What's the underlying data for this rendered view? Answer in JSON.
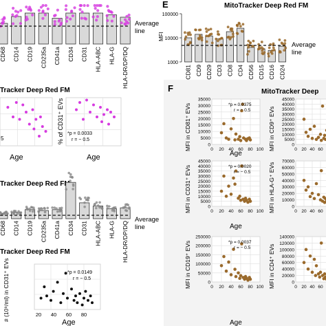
{
  "panel_letters": {
    "e": "E",
    "f": "F"
  },
  "left": {
    "title_top": "Tracker Deep Red FM",
    "title_scatter": "Tracker Deep Red FM",
    "title_mid": "Tracker Deep Red FM",
    "title_bottom": "Tracker Deep Red FM",
    "average_label_1": "Average",
    "average_label_2": "line",
    "top_bar_categories": [
      "CD68",
      "CD14",
      "CD19",
      "CD235a",
      "CD41a",
      "CD34",
      "CD31",
      "HLA-ABC",
      "HLA-G",
      "HLA-DR/DP/DQ"
    ],
    "mid_bar_categories": [
      "CD68",
      "CD14",
      "CD19",
      "CD235a",
      "CD41a",
      "CD34",
      "CD31",
      "HLA-ABC",
      "HLA-G",
      "HLA-DR/DP/DQ"
    ],
    "scatter_left": {
      "tick_label": "5"
    },
    "scatter_right": {
      "ylabel": "% of CD31⁺ EVs",
      "stat_p": "*p = 0.0033",
      "stat_r": "r = − 0.5"
    },
    "scatter_xlabel_a": "Age",
    "scatter_xlabel_b": "Age",
    "bottom_scatter": {
      "ylabel": "# (10⁹/ml) in CD31⁺ EVs",
      "stat_p": "*p = 0.0149",
      "stat_r": "r = − 0.5",
      "xticks": [
        "20",
        "40",
        "60",
        "80"
      ],
      "xlabel": "Age"
    }
  },
  "panel_e": {
    "title": "MitoTracker Deep Red FM",
    "ylabel": "MFI",
    "average_label_1": "Average",
    "average_label_2": "line"
  },
  "panel_f": {
    "title": "MitoTracker Deep",
    "xlabel": "Age",
    "xticks": [
      "0",
      "20",
      "40",
      "60",
      "80",
      "100"
    ],
    "left_plots": [
      {
        "ylabel": "MFI in CD81⁺ EVs",
        "stat_p": "*p = 0.0375",
        "stat_r": "r = − 0.5",
        "yticks": [
          "0",
          "5000",
          "10000",
          "15000",
          "20000",
          "25000",
          "30000",
          "35000"
        ]
      },
      {
        "ylabel": "MFI in CD31⁺ EVs",
        "stat_p": "*p = 0.0020",
        "stat_r": "r = − 0.5",
        "yticks": [
          "0",
          "5000",
          "10000",
          "15000",
          "20000",
          "25000",
          "30000",
          "35000",
          "40000",
          "45000"
        ]
      },
      {
        "ylabel": "MFI in CD19⁺ EVs",
        "stat_p": "*p = 0.0037",
        "stat_r": "r = − 0.5",
        "yticks": [
          "0",
          "50000",
          "100000",
          "150000",
          "200000",
          "250000"
        ]
      }
    ],
    "right_plots": [
      {
        "ylabel": "MFI in CD9⁺ EVs",
        "yticks": [
          "0",
          "5000",
          "10000",
          "15000",
          "20000",
          "25000",
          "30000",
          "35000",
          "40000",
          "45000"
        ]
      },
      {
        "ylabel": "MFI in HLA-G⁺ EVs",
        "yticks": [
          "0",
          "10000",
          "20000",
          "30000",
          "40000",
          "50000",
          "60000",
          "70000"
        ]
      },
      {
        "ylabel": "MFI in CD4⁺ EVs",
        "yticks": [
          "0",
          "20000",
          "40000",
          "60000",
          "80000",
          "100000",
          "120000",
          "140000"
        ]
      }
    ]
  },
  "colors": {
    "magenta": "#d63be0",
    "brown": "#9a6a2c",
    "black": "#111111",
    "gray": "#888888",
    "bar_fill": "#d9d9d9"
  },
  "chart_data": [
    {
      "type": "bar",
      "title": "",
      "categories": [
        "CD68",
        "CD14",
        "CD19",
        "CD235a",
        "CD41a",
        "CD34",
        "CD31",
        "HLA-ABC",
        "HLA-G",
        "HLA-DR/DP/DQ"
      ],
      "values": [
        0.6,
        0.8,
        0.9,
        0.9,
        0.75,
        0.9,
        0.9,
        0.9,
        0.85,
        0.78
      ],
      "ylim": [
        0,
        1
      ],
      "note_line": "Average line"
    },
    {
      "type": "scatter",
      "points": [
        [
          22,
          0.8
        ],
        [
          30,
          0.6
        ],
        [
          35,
          0.9
        ],
        [
          40,
          0.55
        ],
        [
          45,
          0.85
        ],
        [
          50,
          0.7
        ],
        [
          55,
          0.45
        ],
        [
          60,
          0.75
        ],
        [
          62,
          0.35
        ],
        [
          65,
          0.55
        ],
        [
          70,
          0.2
        ],
        [
          72,
          0.6
        ],
        [
          75,
          0.4
        ],
        [
          80,
          0.3
        ]
      ]
    },
    {
      "type": "scatter",
      "ylabel": "% of CD31⁺ EVs",
      "points": [
        [
          25,
          0.75
        ],
        [
          30,
          0.9
        ],
        [
          35,
          0.55
        ],
        [
          40,
          0.95
        ],
        [
          45,
          0.7
        ],
        [
          50,
          0.85
        ],
        [
          55,
          0.6
        ],
        [
          60,
          0.8
        ],
        [
          62,
          0.5
        ],
        [
          65,
          0.65
        ],
        [
          70,
          0.75
        ],
        [
          72,
          0.45
        ],
        [
          75,
          0.7
        ],
        [
          80,
          0.6
        ]
      ]
    },
    {
      "type": "bar",
      "categories": [
        "CD68",
        "CD14",
        "CD19",
        "CD235a",
        "CD41a",
        "CD34",
        "CD31",
        "HLA-ABC",
        "HLA-G",
        "HLA-DR/DP/DQ"
      ],
      "values": [
        0.12,
        0.14,
        0.2,
        0.18,
        0.2,
        0.8,
        0.35,
        0.28,
        0.22,
        0.24
      ],
      "ylim": [
        0,
        1
      ],
      "note_line": "Average line"
    },
    {
      "type": "scatter",
      "ylabel": "# (10⁹/ml) in CD31⁺ EVs",
      "xlabel": "Age",
      "points": [
        [
          18,
          0.25
        ],
        [
          22,
          0.5
        ],
        [
          25,
          0.3
        ],
        [
          30,
          0.2
        ],
        [
          33,
          0.4
        ],
        [
          38,
          0.6
        ],
        [
          42,
          0.15
        ],
        [
          45,
          0.35
        ],
        [
          48,
          0.8
        ],
        [
          50,
          0.25
        ],
        [
          55,
          0.45
        ],
        [
          58,
          0.2
        ],
        [
          60,
          0.3
        ],
        [
          62,
          0.15
        ],
        [
          65,
          0.35
        ],
        [
          68,
          0.1
        ],
        [
          70,
          0.25
        ],
        [
          72,
          0.4
        ],
        [
          75,
          0.2
        ],
        [
          78,
          0.3
        ],
        [
          80,
          0.15
        ]
      ]
    },
    {
      "type": "bar",
      "title": "MitoTracker Deep Red FM",
      "ylabel": "MFI",
      "log_scale": true,
      "yticks": [
        1000,
        10000,
        100000
      ],
      "categories": [
        "CD81",
        "CD9",
        "CD29",
        "CD3",
        "CD8",
        "CD4",
        "CD56",
        "CD15",
        "CD16",
        "CD24"
      ],
      "values": [
        10000,
        14000,
        12000,
        9000,
        18000,
        25000,
        4000,
        3500,
        3000,
        4500
      ],
      "note_line": "Average line"
    },
    {
      "type": "scatter",
      "title": "MitoTracker Deep",
      "ylabel": "MFI in CD81⁺ EVs",
      "xlabel": "Age",
      "xlim": [
        0,
        100
      ],
      "ylim": [
        0,
        35000
      ],
      "points": [
        [
          20,
          9000
        ],
        [
          25,
          16000
        ],
        [
          30,
          5000
        ],
        [
          35,
          4000
        ],
        [
          40,
          12000
        ],
        [
          45,
          20000
        ],
        [
          48,
          3500
        ],
        [
          50,
          8000
        ],
        [
          55,
          4000
        ],
        [
          58,
          6000
        ],
        [
          60,
          3000
        ],
        [
          62,
          26000
        ],
        [
          64,
          31000
        ],
        [
          66,
          5000
        ],
        [
          70,
          4000
        ],
        [
          72,
          3000
        ],
        [
          75,
          4500
        ],
        [
          78,
          5000
        ],
        [
          80,
          3500
        ]
      ]
    },
    {
      "type": "scatter",
      "ylabel": "MFI in CD9⁺ EVs",
      "xlabel": "Age",
      "xlim": [
        0,
        100
      ],
      "ylim": [
        0,
        45000
      ],
      "points": [
        [
          20,
          25000
        ],
        [
          25,
          12000
        ],
        [
          30,
          8000
        ],
        [
          35,
          15000
        ],
        [
          40,
          6000
        ],
        [
          45,
          18000
        ],
        [
          50,
          5000
        ],
        [
          55,
          7000
        ],
        [
          60,
          10000
        ],
        [
          62,
          4000
        ],
        [
          65,
          38000
        ],
        [
          68,
          6000
        ],
        [
          70,
          9000
        ],
        [
          72,
          5000
        ],
        [
          75,
          14000
        ],
        [
          78,
          7000
        ],
        [
          80,
          5000
        ],
        [
          82,
          8000
        ],
        [
          85,
          6000
        ]
      ]
    },
    {
      "type": "scatter",
      "ylabel": "MFI in CD31⁺ EVs",
      "xlabel": "Age",
      "xlim": [
        0,
        100
      ],
      "ylim": [
        0,
        45000
      ],
      "points": [
        [
          20,
          15000
        ],
        [
          25,
          30000
        ],
        [
          30,
          10000
        ],
        [
          35,
          20000
        ],
        [
          40,
          12000
        ],
        [
          45,
          28000
        ],
        [
          48,
          22000
        ],
        [
          50,
          35000
        ],
        [
          55,
          8000
        ],
        [
          58,
          10000
        ],
        [
          60,
          6000
        ],
        [
          62,
          40000
        ],
        [
          65,
          7000
        ],
        [
          68,
          5000
        ],
        [
          70,
          8000
        ],
        [
          72,
          6000
        ],
        [
          75,
          4000
        ],
        [
          78,
          7000
        ],
        [
          80,
          5000
        ]
      ]
    },
    {
      "type": "scatter",
      "ylabel": "MFI in HLA-G⁺ EVs",
      "xlabel": "Age",
      "xlim": [
        0,
        100
      ],
      "ylim": [
        0,
        70000
      ],
      "points": [
        [
          20,
          40000
        ],
        [
          25,
          25000
        ],
        [
          30,
          30000
        ],
        [
          35,
          15000
        ],
        [
          40,
          20000
        ],
        [
          45,
          12000
        ],
        [
          50,
          35000
        ],
        [
          55,
          18000
        ],
        [
          60,
          10000
        ],
        [
          62,
          55000
        ],
        [
          65,
          8000
        ],
        [
          68,
          14000
        ],
        [
          70,
          6000
        ],
        [
          72,
          12000
        ],
        [
          75,
          9000
        ],
        [
          78,
          5000
        ],
        [
          80,
          7000
        ],
        [
          82,
          4000
        ]
      ]
    },
    {
      "type": "scatter",
      "ylabel": "MFI in CD19⁺ EVs",
      "xlabel": "Age",
      "xlim": [
        0,
        100
      ],
      "ylim": [
        0,
        250000
      ],
      "points": [
        [
          20,
          90000
        ],
        [
          25,
          140000
        ],
        [
          30,
          60000
        ],
        [
          35,
          110000
        ],
        [
          40,
          40000
        ],
        [
          45,
          180000
        ],
        [
          48,
          70000
        ],
        [
          50,
          30000
        ],
        [
          55,
          50000
        ],
        [
          58,
          20000
        ],
        [
          60,
          35000
        ],
        [
          62,
          210000
        ],
        [
          65,
          25000
        ],
        [
          68,
          15000
        ],
        [
          70,
          30000
        ],
        [
          72,
          20000
        ],
        [
          75,
          10000
        ],
        [
          78,
          25000
        ],
        [
          80,
          15000
        ]
      ]
    },
    {
      "type": "scatter",
      "ylabel": "MFI in CD4⁺ EVs",
      "xlabel": "Age",
      "xlim": [
        0,
        100
      ],
      "ylim": [
        0,
        140000
      ],
      "points": [
        [
          20,
          60000
        ],
        [
          25,
          100000
        ],
        [
          30,
          40000
        ],
        [
          35,
          80000
        ],
        [
          40,
          30000
        ],
        [
          45,
          70000
        ],
        [
          48,
          20000
        ],
        [
          50,
          50000
        ],
        [
          55,
          25000
        ],
        [
          58,
          15000
        ],
        [
          60,
          30000
        ],
        [
          62,
          120000
        ],
        [
          65,
          20000
        ],
        [
          68,
          10000
        ],
        [
          70,
          25000
        ],
        [
          72,
          15000
        ],
        [
          75,
          8000
        ],
        [
          78,
          20000
        ],
        [
          80,
          12000
        ]
      ]
    }
  ]
}
